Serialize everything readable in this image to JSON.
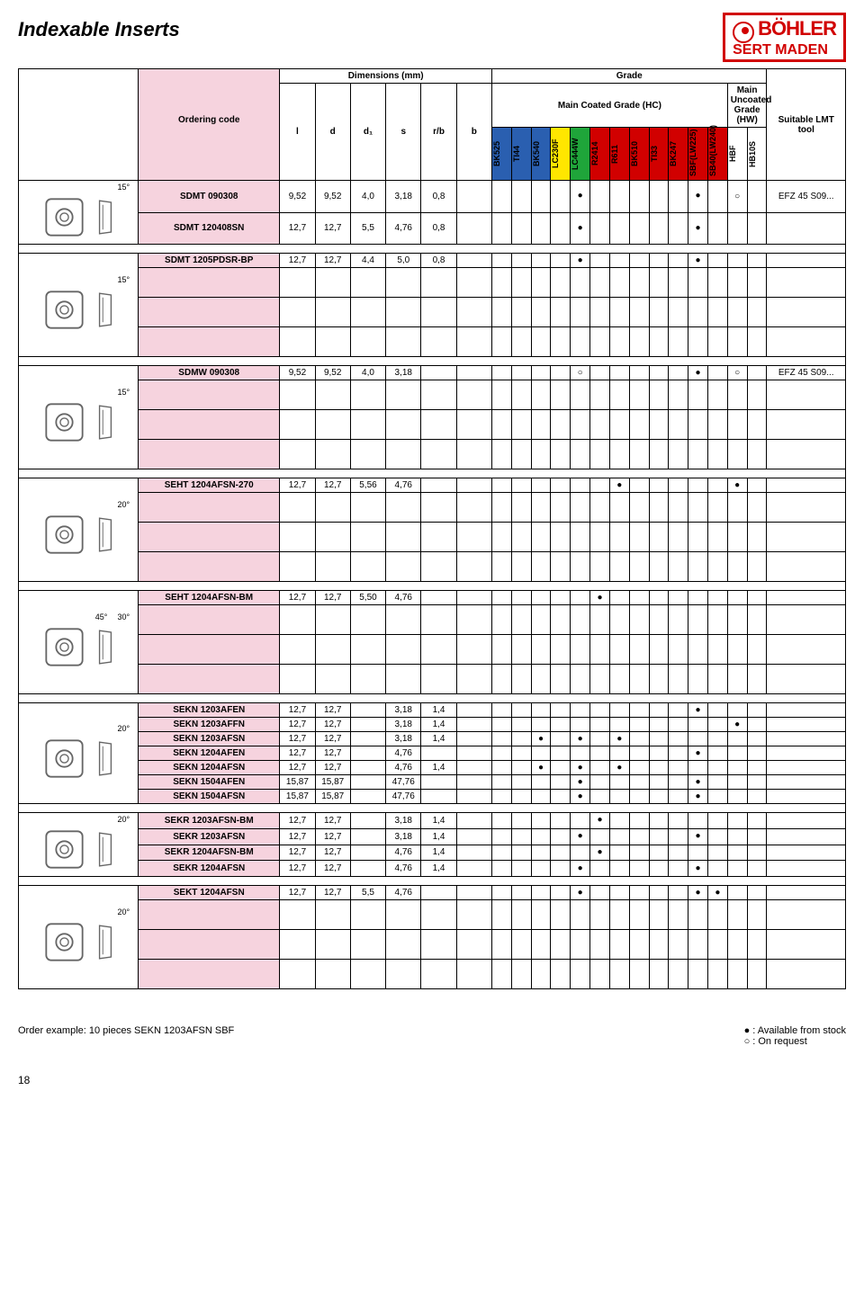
{
  "page_title": "Indexable Inserts",
  "logo": {
    "line1": "BÖHLER",
    "line2": "SERT MADEN"
  },
  "headers": {
    "ordering": "Ordering code",
    "dimensions": "Dimensions (mm)",
    "grade": "Grade",
    "main_coated": "Main Coated Grade (HC)",
    "main_uncoated": "Main Uncoated Grade (HW)",
    "suitable": "Suitable LMT tool",
    "dim_cols": [
      "l",
      "d",
      "d₁",
      "s",
      "r/b",
      "b"
    ],
    "grade_cols": [
      "BK525",
      "TI44",
      "BK540",
      "LC230F",
      "LC444W",
      "R2414",
      "R611",
      "BK510",
      "TI33",
      "BK247",
      "SBF(LW225)",
      "SB40(LW240)",
      "HBF",
      "HB10S"
    ],
    "grade_colors": [
      "#2a5fb0",
      "#2a5fb0",
      "#2a5fb0",
      "#ffe600",
      "#1fa53a",
      "#d10000",
      "#d10000",
      "#d10000",
      "#d10000",
      "#d10000",
      "#d10000",
      "#d10000",
      "#ffffff",
      "#ffffff"
    ]
  },
  "groups": [
    {
      "angle": "15°",
      "rows": [
        {
          "code": "SDMT 090308",
          "dims": [
            "9,52",
            "9,52",
            "4,0",
            "3,18",
            "0,8",
            ""
          ],
          "marks": {
            "4": "●",
            "10": "●",
            "12": "○"
          },
          "tool": "EFZ 45 S09..."
        },
        {
          "code": "SDMT 120408SN",
          "dims": [
            "12,7",
            "12,7",
            "5,5",
            "4,76",
            "0,8",
            ""
          ],
          "marks": {
            "4": "●",
            "10": "●"
          },
          "tool": ""
        }
      ]
    },
    {
      "angle": "15°",
      "rows": [
        {
          "code": "SDMT 1205PDSR-BP",
          "dims": [
            "12,7",
            "12,7",
            "4,4",
            "5,0",
            "0,8",
            ""
          ],
          "marks": {
            "4": "●",
            "10": "●"
          },
          "tool": ""
        }
      ],
      "pad": 3
    },
    {
      "angle": "15°",
      "rows": [
        {
          "code": "SDMW 090308",
          "dims": [
            "9,52",
            "9,52",
            "4,0",
            "3,18",
            "",
            ""
          ],
          "marks": {
            "4": "○",
            "10": "●",
            "12": "○"
          },
          "tool": "EFZ 45 S09..."
        }
      ],
      "pad": 3
    },
    {
      "angle": "20°",
      "rows": [
        {
          "code": "SEHT 1204AFSN-270",
          "dims": [
            "12,7",
            "12,7",
            "5,56",
            "4,76",
            "",
            ""
          ],
          "marks": {
            "6": "●",
            "12": "●"
          },
          "tool": ""
        }
      ],
      "pad": 3
    },
    {
      "angle": "30°",
      "angle2": "45°",
      "rows": [
        {
          "code": "SEHT 1204AFSN-BM",
          "dims": [
            "12,7",
            "12,7",
            "5,50",
            "4,76",
            "",
            ""
          ],
          "marks": {
            "5": "●"
          },
          "tool": ""
        }
      ],
      "pad": 3
    },
    {
      "angle": "20°",
      "rows": [
        {
          "code": "SEKN 1203AFEN",
          "dims": [
            "12,7",
            "12,7",
            "",
            "3,18",
            "1,4",
            ""
          ],
          "marks": {
            "10": "●"
          },
          "tool": ""
        },
        {
          "code": "SEKN 1203AFFN",
          "dims": [
            "12,7",
            "12,7",
            "",
            "3,18",
            "1,4",
            ""
          ],
          "marks": {
            "12": "●"
          },
          "tool": ""
        },
        {
          "code": "SEKN 1203AFSN",
          "dims": [
            "12,7",
            "12,7",
            "",
            "3,18",
            "1,4",
            ""
          ],
          "marks": {
            "2": "●",
            "4": "●",
            "6": "●"
          },
          "tool": ""
        },
        {
          "code": "SEKN 1204AFEN",
          "dims": [
            "12,7",
            "12,7",
            "",
            "4,76",
            "",
            ""
          ],
          "marks": {
            "10": "●"
          },
          "tool": ""
        },
        {
          "code": "SEKN 1204AFSN",
          "dims": [
            "12,7",
            "12,7",
            "",
            "4,76",
            "1,4",
            ""
          ],
          "marks": {
            "2": "●",
            "4": "●",
            "6": "●"
          },
          "tool": ""
        },
        {
          "code": "SEKN 1504AFEN",
          "dims": [
            "15,87",
            "15,87",
            "",
            "47,76",
            "",
            ""
          ],
          "marks": {
            "4": "●",
            "10": "●"
          },
          "tool": ""
        },
        {
          "code": "SEKN 1504AFSN",
          "dims": [
            "15,87",
            "15,87",
            "",
            "47,76",
            "",
            ""
          ],
          "marks": {
            "4": "●",
            "10": "●"
          },
          "tool": ""
        }
      ]
    },
    {
      "angle": "20°",
      "rows": [
        {
          "code": "SEKR 1203AFSN-BM",
          "dims": [
            "12,7",
            "12,7",
            "",
            "3,18",
            "1,4",
            ""
          ],
          "marks": {
            "5": "●"
          },
          "tool": ""
        },
        {
          "code": "SEKR 1203AFSN",
          "dims": [
            "12,7",
            "12,7",
            "",
            "3,18",
            "1,4",
            ""
          ],
          "marks": {
            "4": "●",
            "10": "●"
          },
          "tool": ""
        },
        {
          "code": "SEKR 1204AFSN-BM",
          "dims": [
            "12,7",
            "12,7",
            "",
            "4,76",
            "1,4",
            ""
          ],
          "marks": {
            "5": "●"
          },
          "tool": ""
        },
        {
          "code": "SEKR 1204AFSN",
          "dims": [
            "12,7",
            "12,7",
            "",
            "4,76",
            "1,4",
            ""
          ],
          "marks": {
            "4": "●",
            "10": "●"
          },
          "tool": ""
        }
      ]
    },
    {
      "angle": "20°",
      "rows": [
        {
          "code": "SEKT 1204AFSN",
          "dims": [
            "12,7",
            "12,7",
            "5,5",
            "4,76",
            "",
            ""
          ],
          "marks": {
            "4": "●",
            "10": "●",
            "11": "●"
          },
          "tool": ""
        }
      ],
      "pad": 3
    }
  ],
  "footer": {
    "order_example": "Order example: 10 pieces  SEKN 1203AFSN    SBF",
    "legend1": "● : Available from stock",
    "legend2": "○ : On request"
  },
  "page_number": "18"
}
